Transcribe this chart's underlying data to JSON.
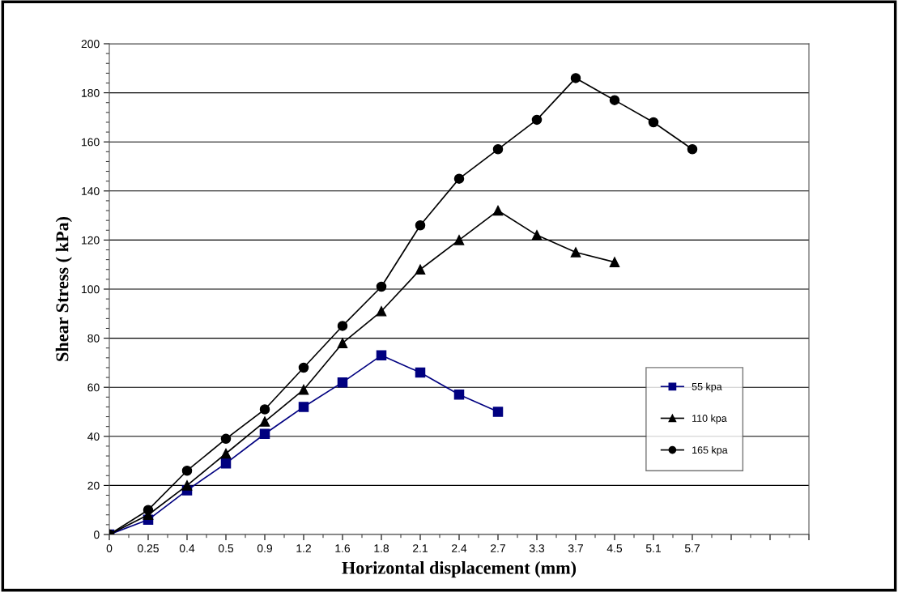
{
  "chart_data": {
    "type": "line",
    "xlabel": "Horizontal displacement (mm)",
    "ylabel": "Shear Stress ( kPa)",
    "categories": [
      "0",
      "0.25",
      "0.4",
      "0.5",
      "0.9",
      "1.2",
      "1.6",
      "1.8",
      "2.1",
      "2.4",
      "2.7",
      "3.3",
      "3.7",
      "4.5",
      "5.1",
      "5.7",
      null,
      null,
      null
    ],
    "series": [
      {
        "name": "55 kpa",
        "color": "#000080",
        "marker": "square",
        "values": [
          0,
          6,
          18,
          29,
          41,
          52,
          62,
          73,
          66,
          57,
          50,
          null,
          null,
          null,
          null,
          null,
          null,
          null,
          null
        ]
      },
      {
        "name": "110 kpa",
        "color": "#000000",
        "marker": "triangle",
        "values": [
          0,
          8,
          20,
          33,
          46,
          59,
          78,
          91,
          108,
          120,
          132,
          122,
          115,
          111,
          null,
          null,
          null,
          null,
          null
        ]
      },
      {
        "name": "165 kpa",
        "color": "#000000",
        "marker": "circle",
        "values": [
          0,
          10,
          26,
          39,
          51,
          68,
          85,
          101,
          126,
          145,
          157,
          169,
          186,
          177,
          168,
          157,
          null,
          null,
          null
        ]
      }
    ],
    "ylim": [
      0,
      200
    ],
    "yticks": [
      0,
      20,
      40,
      60,
      80,
      100,
      120,
      140,
      160,
      180,
      200
    ],
    "grid": "y",
    "legend": "right"
  }
}
